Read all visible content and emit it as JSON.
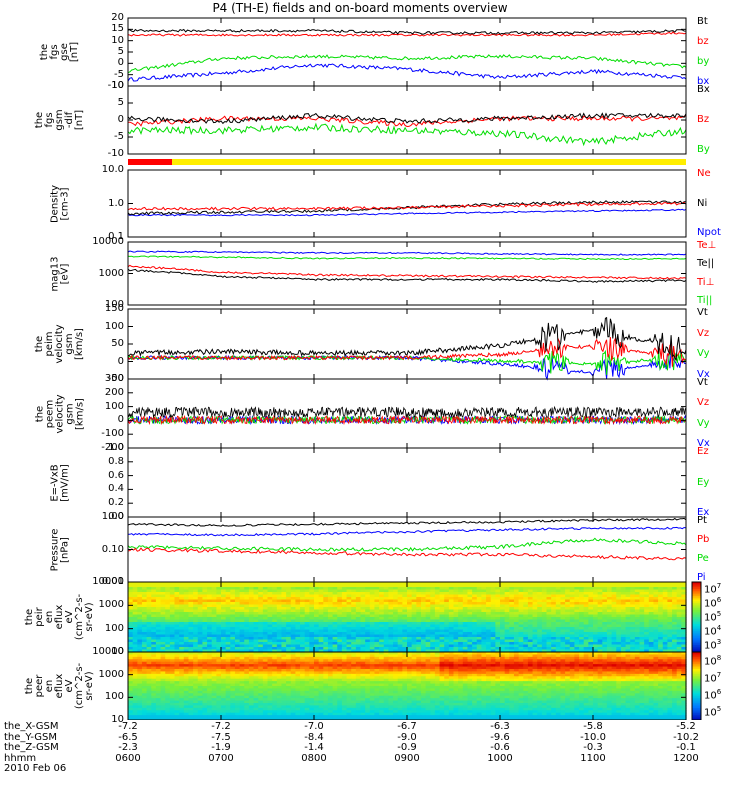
{
  "title": "P4 (TH-E) fields and on-board moments overview",
  "panels": [
    {
      "id": "fgs_gse",
      "ylabel": "the\nfgs\ngse\n[nT]",
      "ylim": [
        -12,
        20
      ],
      "ticks": [
        "20",
        "15",
        "10",
        "5",
        "0",
        "-5",
        "-10"
      ],
      "legend": [
        {
          "text": "Bt",
          "color": "#000000"
        },
        {
          "text": "bz",
          "color": "#ff0000"
        },
        {
          "text": "by",
          "color": "#00dd00"
        },
        {
          "text": "bx",
          "color": "#0000ff"
        }
      ]
    },
    {
      "id": "fgs_gsm",
      "ylabel": "the\nfgs\ngsm\n-dif\n[nT]",
      "ylim": [
        -13,
        10
      ],
      "ticks": [
        "10",
        "5",
        "0",
        "-5",
        "-10"
      ],
      "legend": [
        {
          "text": "Bx",
          "color": "#000000"
        },
        {
          "text": "Bz",
          "color": "#ff0000"
        },
        {
          "text": "By",
          "color": "#00dd00"
        }
      ]
    },
    {
      "id": "density",
      "ylabel": "Density\n[cm-3]",
      "log": true,
      "ylim": [
        0.1,
        10
      ],
      "ticks": [
        "10.0",
        "1.0",
        "0.1"
      ],
      "legend": [
        {
          "text": "Ne",
          "color": "#ff0000"
        },
        {
          "text": "Ni",
          "color": "#000000"
        },
        {
          "text": "Npot",
          "color": "#0000ff"
        }
      ]
    },
    {
      "id": "temp",
      "ylabel": "mag13\n[eV]",
      "log": true,
      "ylim": [
        100,
        10000
      ],
      "ticks": [
        "10000",
        "1000",
        "100"
      ],
      "legend": [
        {
          "text": "Te⊥",
          "color": "#ff0000"
        },
        {
          "text": "Te||",
          "color": "#000000"
        },
        {
          "text": "Ti⊥",
          "color": "#ff0000"
        },
        {
          "text": "Ti||",
          "color": "#00dd00"
        }
      ]
    },
    {
      "id": "peim_vel",
      "ylabel": "the\npeim\nvelocity\ngsm\n[km/s]",
      "ylim": [
        -70,
        160
      ],
      "ticks": [
        "150",
        "100",
        "50",
        "0",
        "-50"
      ],
      "legend": [
        {
          "text": "Vt",
          "color": "#000000"
        },
        {
          "text": "Vz",
          "color": "#ff0000"
        },
        {
          "text": "Vy",
          "color": "#00dd00"
        },
        {
          "text": "Vx",
          "color": "#0000ff"
        }
      ]
    },
    {
      "id": "peem_vel",
      "ylabel": "the\npeem\nvelocity\ngsm\n[km/s]",
      "ylim": [
        -220,
        320
      ],
      "ticks": [
        "300",
        "200",
        "100",
        "0",
        "-100",
        "-200"
      ],
      "legend": [
        {
          "text": "Vt",
          "color": "#000000"
        },
        {
          "text": "Vz",
          "color": "#ff0000"
        },
        {
          "text": "Vy",
          "color": "#00dd00"
        },
        {
          "text": "Vx",
          "color": "#0000ff"
        }
      ]
    },
    {
      "id": "efield",
      "ylabel": "E=-VxB\n[mV/m]",
      "ylim": [
        0,
        1
      ],
      "ticks": [
        "1.0",
        "0.8",
        "0.6",
        "0.4",
        "0.2",
        "0.0"
      ],
      "legend": [
        {
          "text": "Ez",
          "color": "#ff0000"
        },
        {
          "text": "Ey",
          "color": "#00dd00"
        },
        {
          "text": "Ex",
          "color": "#0000ff"
        }
      ]
    },
    {
      "id": "pressure",
      "ylabel": "Pressure\n[nPa]",
      "log": true,
      "ylim": [
        0.01,
        1
      ],
      "ticks": [
        "1.00",
        "0.10",
        "0.01"
      ],
      "legend": [
        {
          "text": "Pt",
          "color": "#000000"
        },
        {
          "text": "Pb",
          "color": "#ff0000"
        },
        {
          "text": "Pe",
          "color": "#00dd00"
        },
        {
          "text": "Pi",
          "color": "#0000ff"
        }
      ]
    },
    {
      "id": "peir_spec",
      "ylabel": "the\npeir\nen\neflux\neV\n(cm^2-s-\nsr-eV)",
      "ticks": [
        "10000",
        "1000",
        "100",
        "10"
      ],
      "colorbar": [
        "10^7",
        "10^6",
        "10^5",
        "10^4",
        "10^3"
      ]
    },
    {
      "id": "peer_spec",
      "ylabel": "the\npeer\nen\neflux\neV\n(cm^2-s-\nsr-eV)",
      "ticks": [
        "10000",
        "1000",
        "100",
        "10"
      ],
      "colorbar": [
        "10^8",
        "10^7",
        "10^6",
        "10^5"
      ]
    }
  ],
  "footer": {
    "rows": [
      {
        "label": "the_X-GSM",
        "values": [
          "-7.2",
          "-7.2",
          "-7.0",
          "-6.7",
          "-6.3",
          "-5.8",
          "-5.2"
        ]
      },
      {
        "label": "the_Y-GSM",
        "values": [
          "-6.5",
          "-7.5",
          "-8.4",
          "-9.0",
          "-9.6",
          "-10.0",
          "-10.2"
        ]
      },
      {
        "label": "the_Z-GSM",
        "values": [
          "-2.3",
          "-1.9",
          "-1.4",
          "-0.9",
          "-0.6",
          "-0.3",
          "-0.1"
        ]
      },
      {
        "label": "hhmm",
        "values": [
          "0600",
          "0700",
          "0800",
          "0900",
          "1000",
          "1100",
          "1200"
        ]
      }
    ],
    "date": "2010 Feb 06"
  },
  "chart_data": [
    {
      "type": "line",
      "title": "P4 (TH-E) fields and on-board moments overview",
      "ylabel": "the fgs gse [nT]",
      "ylim": [
        -12,
        20
      ],
      "x": [
        "0600",
        "0700",
        "0800",
        "0900",
        "1000",
        "1100",
        "1200"
      ],
      "series": [
        {
          "name": "Bt",
          "values": [
            14,
            14,
            14,
            13,
            13,
            13,
            14
          ]
        },
        {
          "name": "bz",
          "values": [
            12,
            12,
            12,
            12,
            12,
            12,
            13
          ]
        },
        {
          "name": "by",
          "values": [
            -5,
            1,
            2,
            1,
            2,
            1,
            -3
          ]
        },
        {
          "name": "bx",
          "values": [
            -9,
            -6,
            -2,
            -4,
            -8,
            -5,
            -8
          ]
        }
      ]
    },
    {
      "type": "line",
      "ylabel": "the fgs gsm-dif [nT]",
      "ylim": [
        -13,
        10
      ],
      "x": [
        "0600",
        "0700",
        "0800",
        "0900",
        "1000",
        "1100",
        "1200"
      ],
      "series": [
        {
          "name": "Bx",
          "values": [
            -1,
            -2,
            0,
            -2,
            -1,
            0,
            0
          ]
        },
        {
          "name": "Bz",
          "values": [
            -3,
            -1,
            -1,
            -3,
            -1,
            -1,
            -1
          ]
        },
        {
          "name": "By",
          "values": [
            -5,
            -5,
            -4,
            -5,
            -6,
            -9,
            -5
          ]
        }
      ]
    },
    {
      "type": "line",
      "ylabel": "Density [cm-3]",
      "log": true,
      "ylim": [
        0.1,
        10
      ],
      "x": [
        "0600",
        "0700",
        "0800",
        "0900",
        "1000",
        "1100",
        "1200"
      ],
      "series": [
        {
          "name": "Ne",
          "values": [
            0.7,
            0.7,
            0.7,
            0.75,
            0.85,
            0.95,
            1.0
          ]
        },
        {
          "name": "Ni",
          "values": [
            0.5,
            0.55,
            0.6,
            0.75,
            0.95,
            1.1,
            1.1
          ]
        },
        {
          "name": "Npot",
          "values": [
            0.45,
            0.45,
            0.45,
            0.5,
            0.55,
            0.6,
            0.65
          ]
        }
      ]
    },
    {
      "type": "line",
      "ylabel": "mag13 [eV]",
      "log": true,
      "ylim": [
        100,
        10000
      ],
      "x": [
        "0600",
        "0700",
        "0800",
        "0900",
        "1000",
        "1100",
        "1200"
      ],
      "series": [
        {
          "name": "Te⊥",
          "values": [
            1700,
            1100,
            900,
            850,
            800,
            750,
            700
          ]
        },
        {
          "name": "Te||",
          "values": [
            1300,
            800,
            650,
            650,
            650,
            550,
            600
          ]
        },
        {
          "name": "Ti⊥",
          "values": [
            5000,
            4800,
            4500,
            4500,
            4200,
            4000,
            4000
          ]
        },
        {
          "name": "Ti||",
          "values": [
            3500,
            3300,
            3000,
            3100,
            3000,
            2900,
            2900
          ]
        }
      ]
    },
    {
      "type": "line",
      "ylabel": "the peim velocity gsm [km/s]",
      "ylim": [
        -70,
        160
      ],
      "x": [
        "0600",
        "0700",
        "0800",
        "0900",
        "1000",
        "1100",
        "1200"
      ],
      "series": [
        {
          "name": "Vt",
          "values": [
            15,
            20,
            15,
            15,
            40,
            90,
            30
          ]
        },
        {
          "name": "Vz",
          "values": [
            0,
            0,
            0,
            0,
            10,
            40,
            0
          ]
        },
        {
          "name": "Vy",
          "values": [
            0,
            0,
            0,
            0,
            -10,
            -20,
            0
          ]
        },
        {
          "name": "Vx",
          "values": [
            0,
            0,
            0,
            0,
            -20,
            -50,
            -10
          ]
        }
      ]
    },
    {
      "type": "line",
      "ylabel": "the peem velocity gsm [km/s]",
      "ylim": [
        -220,
        320
      ],
      "x": [
        "0600",
        "0700",
        "0800",
        "0900",
        "1000",
        "1100",
        "1200"
      ],
      "series": [
        {
          "name": "Vt",
          "values": [
            60,
            60,
            60,
            60,
            60,
            60,
            60
          ]
        },
        {
          "name": "Vz",
          "values": [
            0,
            0,
            0,
            0,
            0,
            0,
            0
          ]
        },
        {
          "name": "Vy",
          "values": [
            0,
            0,
            0,
            0,
            0,
            0,
            0
          ]
        },
        {
          "name": "Vx",
          "values": [
            0,
            0,
            0,
            0,
            0,
            0,
            0
          ]
        }
      ]
    },
    {
      "type": "line",
      "ylabel": "E=-VxB [mV/m]",
      "ylim": [
        0,
        1
      ],
      "series": []
    },
    {
      "type": "line",
      "ylabel": "Pressure [nPa]",
      "log": true,
      "ylim": [
        0.01,
        1
      ],
      "x": [
        "0600",
        "0700",
        "0800",
        "0900",
        "1000",
        "1100",
        "1200"
      ],
      "series": [
        {
          "name": "Pt",
          "values": [
            0.6,
            0.55,
            0.6,
            0.65,
            0.7,
            0.8,
            0.85
          ]
        },
        {
          "name": "Pb",
          "values": [
            0.1,
            0.09,
            0.08,
            0.07,
            0.07,
            0.06,
            0.05
          ]
        },
        {
          "name": "Pe",
          "values": [
            0.12,
            0.11,
            0.1,
            0.1,
            0.12,
            0.2,
            0.15
          ]
        },
        {
          "name": "Pi",
          "values": [
            0.3,
            0.28,
            0.3,
            0.35,
            0.4,
            0.45,
            0.45
          ]
        }
      ]
    },
    {
      "type": "heatmap",
      "ylabel": "the peir en eflux",
      "log": true,
      "ylim": [
        7,
        20000
      ],
      "colorbar": [
        "10^3",
        "10^7"
      ]
    },
    {
      "type": "heatmap",
      "ylabel": "the peer en eflux",
      "log": true,
      "ylim": [
        7,
        20000
      ],
      "colorbar": [
        "10^5",
        "10^8"
      ]
    }
  ]
}
